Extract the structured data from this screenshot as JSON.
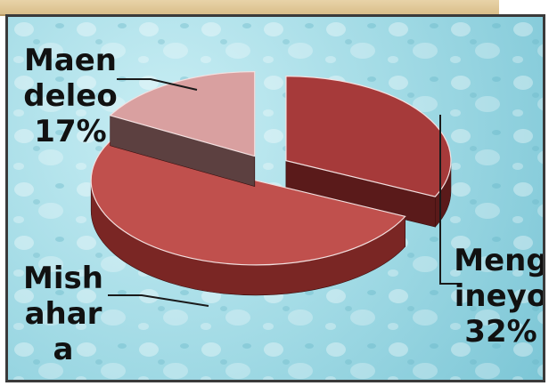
{
  "chart_data": {
    "type": "pie",
    "slices": [
      {
        "label_lines": [
          "Meng",
          "ineyo"
        ],
        "percent_label": "32%",
        "value": 32,
        "color": "#a63a3a",
        "dark": "#5a1a1a"
      },
      {
        "label_lines": [
          "Mish",
          "ahar",
          "a"
        ],
        "percent_label": "",
        "value": 51,
        "color": "#c0504d",
        "dark": "#7a2624"
      },
      {
        "label_lines": [
          "Maen",
          "deleo"
        ],
        "percent_label": "17%",
        "value": 17,
        "color": "#d9a0a0",
        "dark": "#5c4040"
      }
    ]
  }
}
